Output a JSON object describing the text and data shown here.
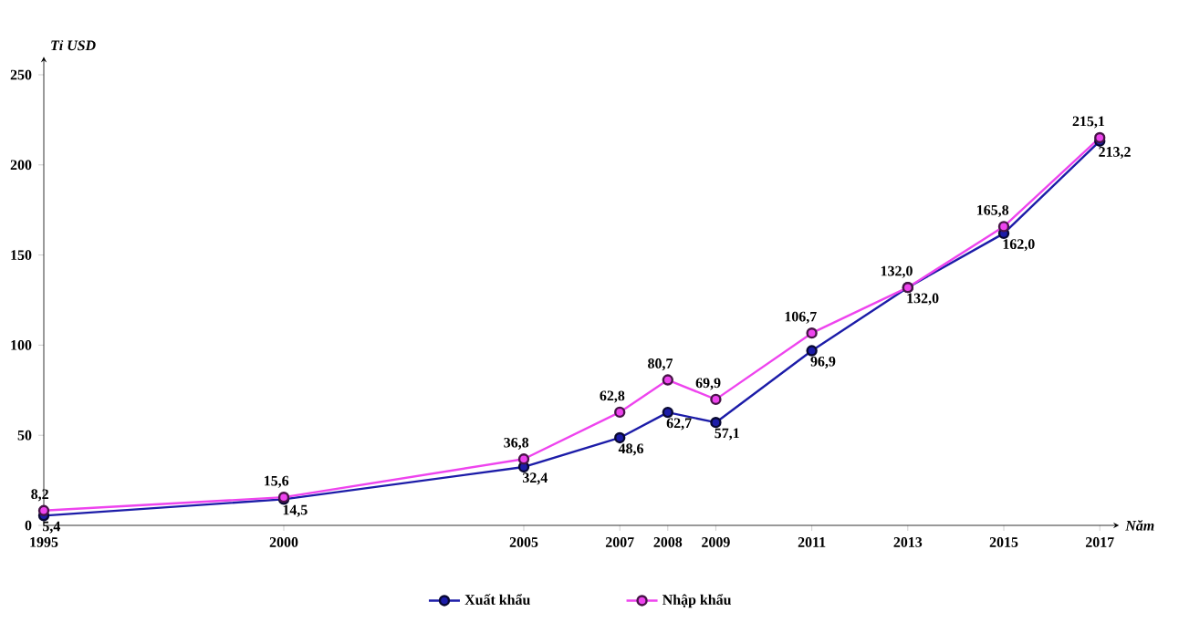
{
  "chart_data": {
    "type": "line",
    "xlabel": "Năm",
    "ylabel": "Tỉ USD",
    "x": [
      1995,
      2000,
      2005,
      2007,
      2008,
      2009,
      2011,
      2013,
      2015,
      2017
    ],
    "xlim": [
      1995,
      2017.4
    ],
    "xticks": [
      1995,
      2000,
      2005,
      2007,
      2008,
      2009,
      2011,
      2013,
      2015,
      2017
    ],
    "ylim": [
      0,
      260
    ],
    "yticks": [
      0,
      50,
      100,
      150,
      200,
      250
    ],
    "series": [
      {
        "name": "Xuất khẩu",
        "color": "#1c1ca8",
        "values": [
          5.4,
          14.5,
          32.4,
          48.6,
          62.7,
          57.1,
          96.9,
          132.0,
          162.0,
          213.2
        ],
        "value_labels": [
          "5,4",
          "14,5",
          "32,4",
          "48,6",
          "62,7",
          "57,1",
          "96,9",
          "132,0",
          "162,0",
          "213,2"
        ]
      },
      {
        "name": "Nhập khẩu",
        "color": "#ee44ee",
        "values": [
          8.2,
          15.6,
          36.8,
          62.8,
          80.7,
          69.9,
          106.7,
          132.0,
          165.8,
          215.1
        ],
        "value_labels": [
          "8,2",
          "15,6",
          "36,8",
          "62,8",
          "80,7",
          "69,9",
          "106,7",
          "132,0",
          "165,8",
          "215,1"
        ]
      }
    ],
    "marker": "circle",
    "line_style": "solid",
    "legend": "bottom"
  }
}
